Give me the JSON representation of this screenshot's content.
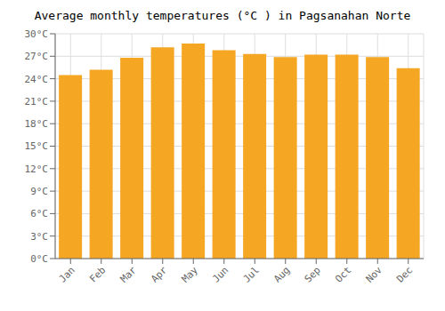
{
  "chart_data": {
    "type": "bar",
    "title": "Average monthly temperatures (°C ) in Pagsanahan Norte",
    "categories": [
      "Jan",
      "Feb",
      "Mar",
      "Apr",
      "May",
      "Jun",
      "Jul",
      "Aug",
      "Sep",
      "Oct",
      "Nov",
      "Dec"
    ],
    "values": [
      24.5,
      25.2,
      26.8,
      28.2,
      28.7,
      27.8,
      27.3,
      26.9,
      27.2,
      27.2,
      26.9,
      25.4
    ],
    "color": "#F5A623",
    "ylim": [
      0,
      30
    ],
    "yticks": [
      {
        "value": 0,
        "label": "0°C"
      },
      {
        "value": 3,
        "label": "3°C"
      },
      {
        "value": 6,
        "label": "6°C"
      },
      {
        "value": 9,
        "label": "9°C"
      },
      {
        "value": 12,
        "label": "12°C"
      },
      {
        "value": 15,
        "label": "15°C"
      },
      {
        "value": 18,
        "label": "18°C"
      },
      {
        "value": 21,
        "label": "21°C"
      },
      {
        "value": 24,
        "label": "24°C"
      },
      {
        "value": 27,
        "label": "27°C"
      },
      {
        "value": 30,
        "label": "30°C"
      }
    ],
    "grid": true
  }
}
